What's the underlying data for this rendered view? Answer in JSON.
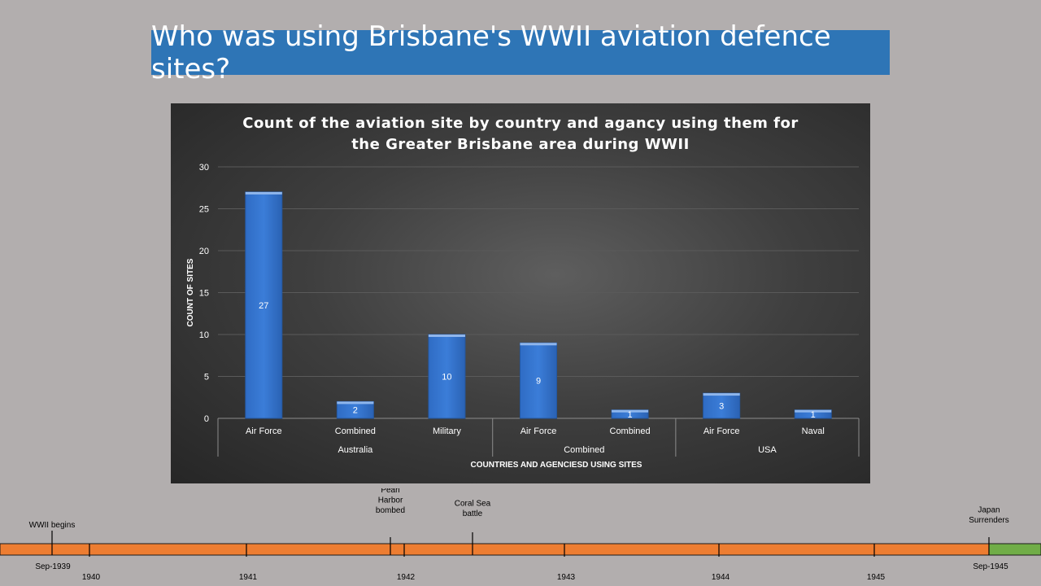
{
  "page_title": "Who was using Brisbane's WWII aviation defence sites?",
  "chart_data": {
    "type": "bar",
    "title_lines": [
      "Count of the aviation site by country and agancy using them for",
      "the Greater Brisbane area during WWII"
    ],
    "xlabel": "COUNTRIES AND AGENCIESD USING SITES",
    "ylabel": "COUNT OF SITES",
    "ylim": [
      0,
      30
    ],
    "yticks": [
      0,
      5,
      10,
      15,
      20,
      25,
      30
    ],
    "categories": [
      "Air Force",
      "Combined",
      "Military",
      "Air Force",
      "Combined",
      "Air Force",
      "Naval"
    ],
    "groups": [
      {
        "label": "Australia",
        "count": 3
      },
      {
        "label": "Combined",
        "count": 2
      },
      {
        "label": "USA",
        "count": 2
      }
    ],
    "values": [
      27,
      2,
      10,
      9,
      1,
      3,
      1
    ],
    "grid": true,
    "legend": "none",
    "bar_color": "#3b7dd8"
  },
  "timeline": {
    "bar_color": "#ed7d31",
    "end_color": "#70ad47",
    "years": [
      "1940",
      "1941",
      "1942",
      "1943",
      "1944",
      "1945"
    ],
    "start_label": "Sep-1939",
    "end_label": "Sep-1945",
    "events": [
      {
        "lines": [
          "WWII begins"
        ]
      },
      {
        "lines": [
          "Pearl",
          "Harbor",
          "bombed"
        ]
      },
      {
        "lines": [
          "Coral Sea",
          "battle"
        ]
      },
      {
        "lines": [
          "Japan",
          "Surrenders"
        ]
      }
    ]
  }
}
